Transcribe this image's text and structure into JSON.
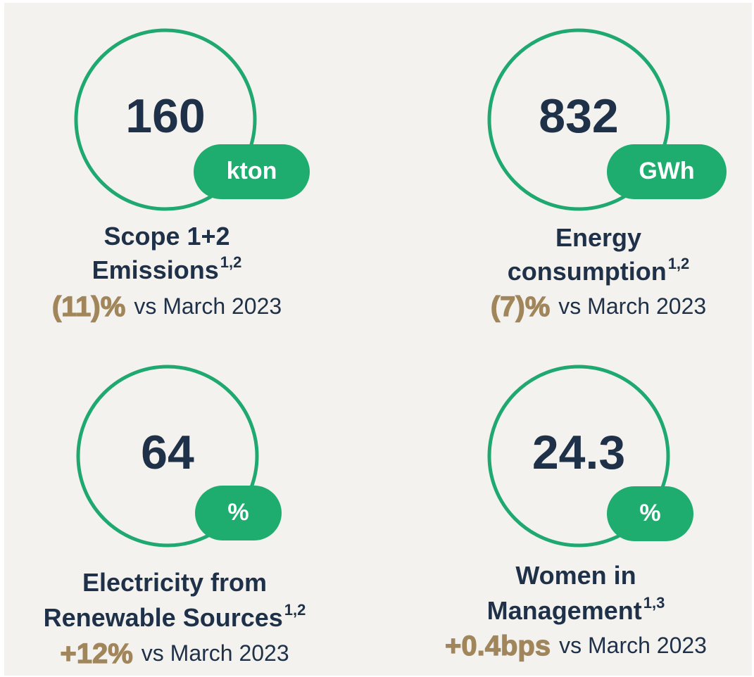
{
  "kpis": [
    {
      "value": "160",
      "unit": "kton",
      "label": [
        "Scope 1+2",
        "Emissions"
      ],
      "note": "1,2",
      "change": "(11)%",
      "comparison": "vs March 2023"
    },
    {
      "value": "832",
      "unit": "GWh",
      "label": [
        "Energy",
        "consumption"
      ],
      "note": "1,2",
      "change": "(7)%",
      "comparison": "vs March 2023"
    },
    {
      "value": "64",
      "unit": "%",
      "label": [
        "Electricity from",
        "Renewable Sources"
      ],
      "note": "1,2",
      "change": "+12%",
      "comparison": "vs March 2023"
    },
    {
      "value": "24.3",
      "unit": "%",
      "label": [
        "Women in",
        "Management"
      ],
      "note": "1,3",
      "change": "+0.4bps",
      "comparison": "vs March 2023"
    }
  ]
}
